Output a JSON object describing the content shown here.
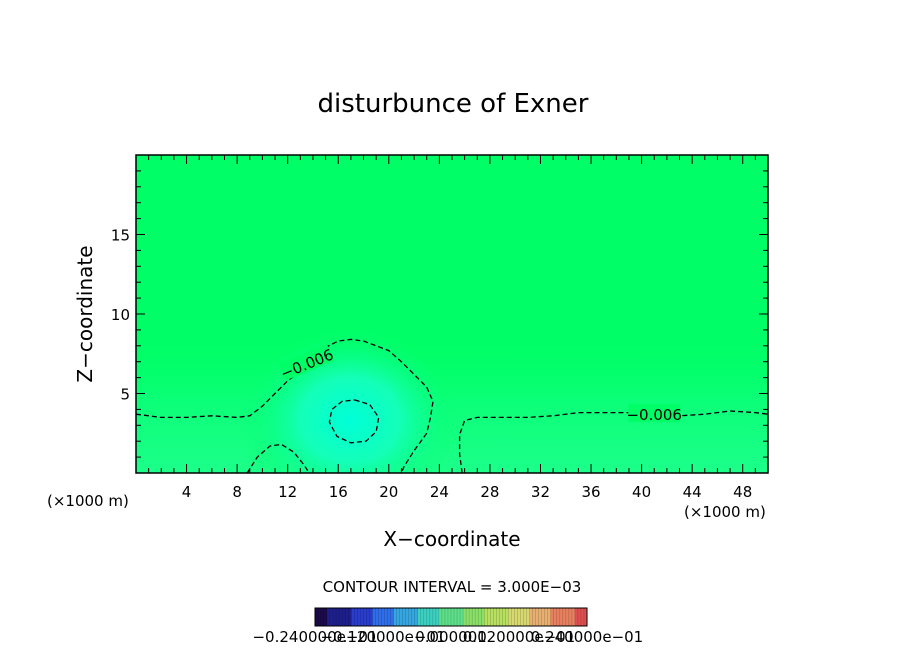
{
  "chart_data": {
    "type": "contour",
    "title": "disturbunce of Exner",
    "xlabel": "X−coordinate",
    "ylabel": "Z−coordinate",
    "x_unit_left": "(×1000 m)",
    "x_unit_right": "(×1000 m)",
    "xlim": [
      0,
      50
    ],
    "ylim": [
      0,
      20
    ],
    "x_ticks": [
      4,
      8,
      12,
      16,
      20,
      24,
      28,
      32,
      36,
      40,
      44,
      48
    ],
    "y_ticks": [
      5,
      10,
      15
    ],
    "x_tick_labels": [
      "4",
      "8",
      "12",
      "16",
      "20",
      "24",
      "28",
      "32",
      "36",
      "40",
      "44",
      "48"
    ],
    "y_tick_labels": [
      "5",
      "10",
      "15"
    ],
    "contour_interval_text": "CONTOUR INTERVAL = 3.000E−03",
    "contour_interval": 0.003,
    "contours": [
      {
        "level": -0.006,
        "label": "−0.006",
        "dashed": true,
        "paths": [
          [
            [
              0,
              3.7
            ],
            [
              2,
              3.5
            ],
            [
              4,
              3.5
            ],
            [
              6,
              3.6
            ],
            [
              8,
              3.5
            ],
            [
              9,
              3.6
            ],
            [
              10,
              4.2
            ],
            [
              11,
              5.0
            ],
            [
              12,
              5.8
            ],
            [
              13,
              6.4
            ],
            [
              14,
              7.3
            ],
            [
              15,
              7.9
            ],
            [
              16,
              8.3
            ],
            [
              17,
              8.4
            ],
            [
              18,
              8.3
            ],
            [
              19,
              8.0
            ],
            [
              20,
              7.7
            ],
            [
              21,
              7.0
            ],
            [
              22,
              6.2
            ],
            [
              23,
              5.4
            ],
            [
              23.5,
              4.5
            ],
            [
              23.3,
              3.5
            ],
            [
              23,
              2.5
            ],
            [
              22,
              1.4
            ],
            [
              21.2,
              0.4
            ],
            [
              21,
              0
            ]
          ],
          [
            [
              25.8,
              0
            ],
            [
              25.6,
              1.2
            ],
            [
              25.6,
              2.4
            ],
            [
              26,
              3.3
            ],
            [
              27,
              3.5
            ],
            [
              29,
              3.5
            ],
            [
              31,
              3.5
            ],
            [
              33,
              3.6
            ],
            [
              35,
              3.8
            ],
            [
              37,
              3.8
            ],
            [
              39,
              3.8
            ],
            [
              41,
              3.7
            ],
            [
              43,
              3.6
            ],
            [
              45,
              3.7
            ],
            [
              47,
              3.9
            ],
            [
              49,
              3.8
            ],
            [
              50,
              3.7
            ]
          ]
        ],
        "label_positions": [
          [
            13.5,
            6.9
          ],
          [
            41,
            3.7
          ]
        ]
      },
      {
        "level": -0.009,
        "label": "",
        "dashed": true,
        "paths": [
          [
            [
              8.8,
              0
            ],
            [
              9.6,
              1.0
            ],
            [
              10.6,
              1.7
            ],
            [
              11.5,
              1.8
            ],
            [
              12.5,
              1.3
            ],
            [
              13.3,
              0.5
            ],
            [
              13.7,
              0
            ]
          ],
          [
            [
              17.3,
              4.6
            ],
            [
              18.5,
              4.3
            ],
            [
              19.2,
              3.5
            ],
            [
              19.0,
              2.6
            ],
            [
              18.2,
              2.0
            ],
            [
              17.0,
              1.9
            ],
            [
              15.9,
              2.3
            ],
            [
              15.3,
              3.2
            ],
            [
              15.5,
              4.0
            ],
            [
              16.3,
              4.5
            ],
            [
              17.3,
              4.6
            ]
          ]
        ],
        "label_positions": []
      }
    ],
    "colorbar": {
      "min_label": "−0.24000",
      "max_label": "e−01",
      "overlapping_labels": [
        "−0.240000e−01",
        "−0.120000e−01",
        "0.000000",
        "0.120000e−01",
        "0.240000e−01"
      ],
      "colors": [
        "#1a0a4a",
        "#1e1e8c",
        "#2a3ccc",
        "#2f6ee8",
        "#35a6e0",
        "#3cd0c0",
        "#5ee08a",
        "#8ae068",
        "#b8e060",
        "#d8d870",
        "#e8b070",
        "#e88060",
        "#e05050"
      ]
    }
  }
}
